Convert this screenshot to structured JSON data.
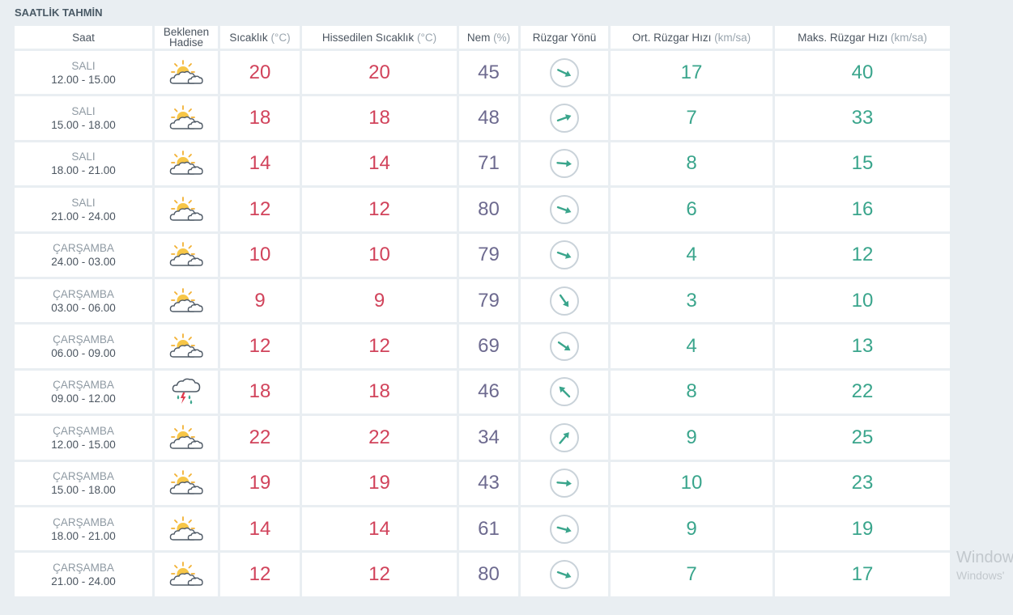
{
  "title": "SAATLİK TAHMİN",
  "headers": {
    "time": "Saat",
    "event_line1": "Beklenen",
    "event_line2": "Hadise",
    "temp": "Sıcaklık",
    "temp_unit": "(°C)",
    "feel": "Hissedilen Sıcaklık",
    "feel_unit": "(°C)",
    "hum": "Nem",
    "hum_unit": "(%)",
    "dir": "Rüzgar Yönü",
    "avg": "Ort. Rüzgar Hızı",
    "avg_unit": "(km/sa)",
    "max": "Maks. Rüzgar Hızı",
    "max_unit": "(km/sa)"
  },
  "rows": [
    {
      "day": "SALI",
      "range": "12.00 - 15.00",
      "icon": "partly-cloudy-icon",
      "temp": "20",
      "feel": "20",
      "hum": "45",
      "dir_deg": 115,
      "avg": "17",
      "max": "40"
    },
    {
      "day": "SALI",
      "range": "15.00 - 18.00",
      "icon": "partly-cloudy-icon",
      "temp": "18",
      "feel": "18",
      "hum": "48",
      "dir_deg": 70,
      "avg": "7",
      "max": "33"
    },
    {
      "day": "SALI",
      "range": "18.00 - 21.00",
      "icon": "partly-cloudy-icon",
      "temp": "14",
      "feel": "14",
      "hum": "71",
      "dir_deg": 95,
      "avg": "8",
      "max": "15"
    },
    {
      "day": "SALI",
      "range": "21.00 - 24.00",
      "icon": "partly-cloudy-icon",
      "temp": "12",
      "feel": "12",
      "hum": "80",
      "dir_deg": 110,
      "avg": "6",
      "max": "16"
    },
    {
      "day": "ÇARŞAMBA",
      "range": "24.00 - 03.00",
      "icon": "partly-cloudy-icon",
      "temp": "10",
      "feel": "10",
      "hum": "79",
      "dir_deg": 110,
      "avg": "4",
      "max": "12"
    },
    {
      "day": "ÇARŞAMBA",
      "range": "03.00 - 06.00",
      "icon": "partly-cloudy-icon",
      "temp": "9",
      "feel": "9",
      "hum": "79",
      "dir_deg": 145,
      "avg": "3",
      "max": "10"
    },
    {
      "day": "ÇARŞAMBA",
      "range": "06.00 - 09.00",
      "icon": "partly-cloudy-icon",
      "temp": "12",
      "feel": "12",
      "hum": "69",
      "dir_deg": 125,
      "avg": "4",
      "max": "13"
    },
    {
      "day": "ÇARŞAMBA",
      "range": "09.00 - 12.00",
      "icon": "thunderstorm-icon",
      "temp": "18",
      "feel": "18",
      "hum": "46",
      "dir_deg": 315,
      "avg": "8",
      "max": "22"
    },
    {
      "day": "ÇARŞAMBA",
      "range": "12.00 - 15.00",
      "icon": "partly-cloudy-icon",
      "temp": "22",
      "feel": "22",
      "hum": "34",
      "dir_deg": 40,
      "avg": "9",
      "max": "25"
    },
    {
      "day": "ÇARŞAMBA",
      "range": "15.00 - 18.00",
      "icon": "partly-cloudy-icon",
      "temp": "19",
      "feel": "19",
      "hum": "43",
      "dir_deg": 95,
      "avg": "10",
      "max": "23"
    },
    {
      "day": "ÇARŞAMBA",
      "range": "18.00 - 21.00",
      "icon": "partly-cloudy-icon",
      "temp": "14",
      "feel": "14",
      "hum": "61",
      "dir_deg": 105,
      "avg": "9",
      "max": "19"
    },
    {
      "day": "ÇARŞAMBA",
      "range": "21.00 - 24.00",
      "icon": "partly-cloudy-icon",
      "temp": "12",
      "feel": "12",
      "hum": "80",
      "dir_deg": 110,
      "avg": "7",
      "max": "17"
    }
  ],
  "watermark": {
    "line1": "Windows",
    "line2": "Windows'"
  },
  "colors": {
    "temp": "#d1435b",
    "humidity": "#6d6a8f",
    "wind": "#3aa58c",
    "background": "#e9eef2"
  }
}
